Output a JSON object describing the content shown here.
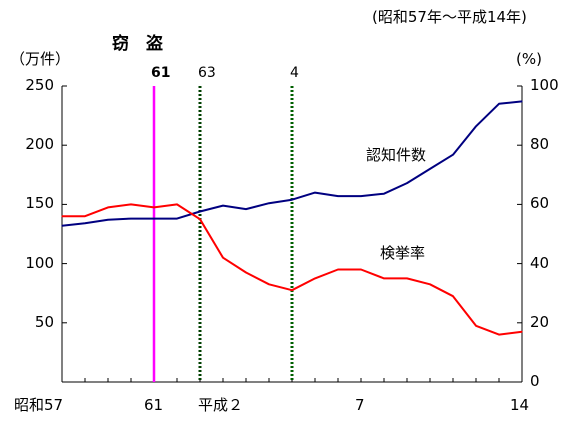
{
  "chart_data": {
    "type": "line",
    "title": "窃　盗",
    "period_note": "(昭和57年〜平成14年)",
    "y_left_label": "（万件）",
    "y_right_label": "(%)",
    "y_left_ticks": [
      "250",
      "200",
      "150",
      "100",
      "50"
    ],
    "y_right_ticks": [
      "100",
      "80",
      "60",
      "40",
      "20",
      "0"
    ],
    "ylim_left": [
      0,
      250
    ],
    "ylim_right": [
      0,
      100
    ],
    "x_tick_labels": [
      "昭和57",
      "61",
      "平成２",
      "7",
      "14"
    ],
    "x_years": [
      "S57",
      "S58",
      "S59",
      "S60",
      "S61",
      "S62",
      "S63",
      "H1",
      "H2",
      "H3",
      "H4",
      "H5",
      "H6",
      "H7",
      "H8",
      "H9",
      "H10",
      "H11",
      "H12",
      "H13",
      "H14"
    ],
    "markers": [
      {
        "label": "61",
        "year_index": 4,
        "color": "#ff00ff",
        "style": "solid"
      },
      {
        "label": "63",
        "year_index": 6,
        "color": "#004000",
        "style": "dotted"
      },
      {
        "label": "4",
        "year_index": 10,
        "color": "#006000",
        "style": "dotted"
      }
    ],
    "series": [
      {
        "name": "認知件数",
        "axis": "left",
        "color": "#000080",
        "values": [
          132,
          134,
          137,
          138,
          138,
          138,
          144,
          149,
          146,
          151,
          154,
          160,
          157,
          157,
          159,
          168,
          180,
          192,
          216,
          235,
          237
        ]
      },
      {
        "name": "検挙率",
        "axis": "right",
        "color": "#ff0000",
        "values": [
          56,
          56,
          59,
          60,
          59,
          60,
          55,
          42,
          37,
          33,
          31,
          35,
          38,
          38,
          35,
          35,
          33,
          29,
          19,
          16,
          17
        ]
      }
    ]
  }
}
